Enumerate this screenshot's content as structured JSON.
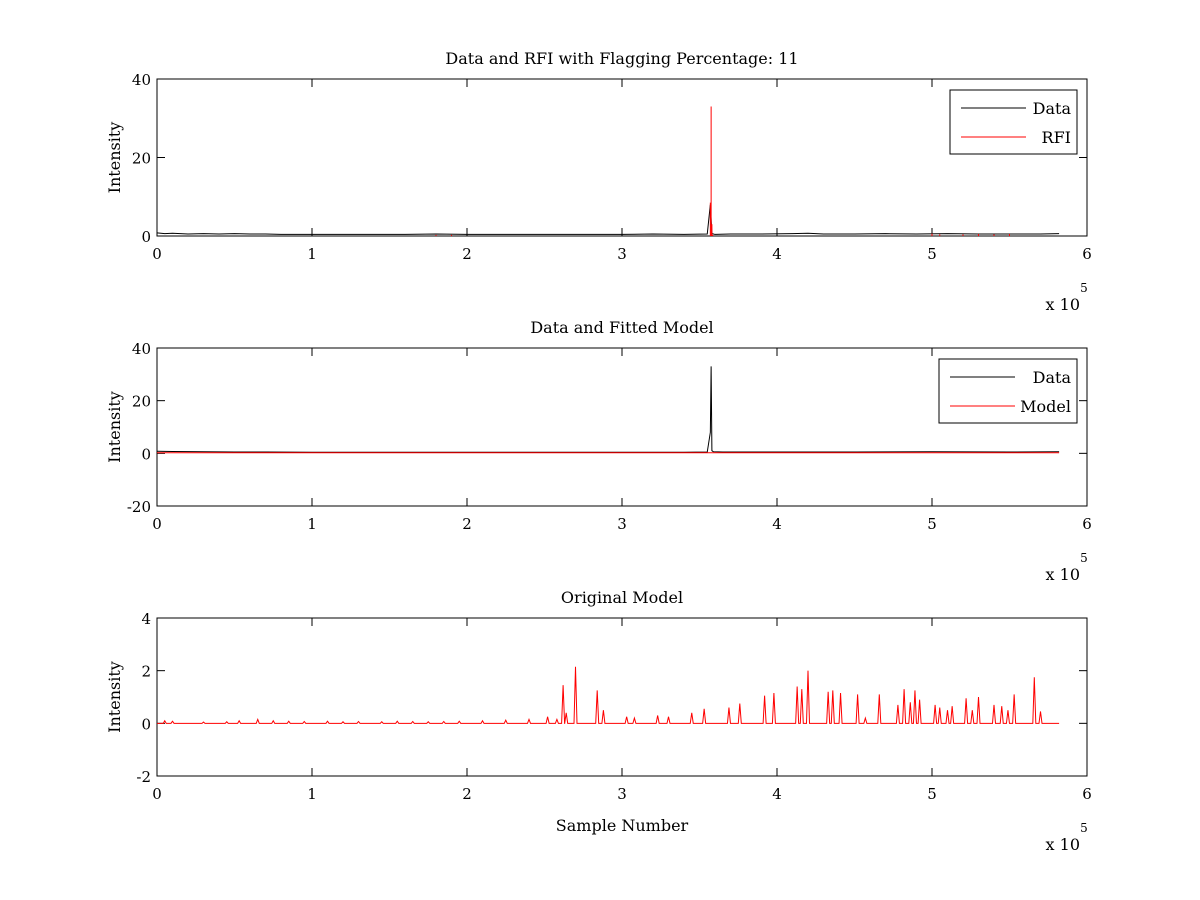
{
  "chart_data": [
    {
      "type": "line",
      "title": "Data and RFI with Flagging Percentage: 11",
      "xlabel": "",
      "ylabel": "Intensity",
      "xlim": [
        0,
        600000
      ],
      "ylim": [
        0,
        40
      ],
      "x_ticks": [
        0,
        1,
        2,
        3,
        4,
        5,
        6
      ],
      "x_tick_labels": [
        "0",
        "1",
        "2",
        "3",
        "4",
        "5",
        "6"
      ],
      "x_exponent_label": "x 10",
      "x_exponent_power": "5",
      "y_ticks": [
        0,
        20,
        40
      ],
      "y_tick_labels": [
        "0",
        "20",
        "40"
      ],
      "grid": false,
      "legend_position": "top-right",
      "series": [
        {
          "name": "Data",
          "color": "#000000",
          "x": [
            0,
            5000,
            10000,
            20000,
            30000,
            40000,
            50000,
            60000,
            70000,
            80000,
            100000,
            120000,
            140000,
            160000,
            180000,
            200000,
            220000,
            240000,
            260000,
            280000,
            300000,
            320000,
            340000,
            355000,
            357000,
            358000,
            359000,
            360000,
            370000,
            390000,
            410000,
            420000,
            430000,
            450000,
            470000,
            490000,
            510000,
            530000,
            550000,
            570000,
            582000
          ],
          "y": [
            0.8,
            0.6,
            0.7,
            0.5,
            0.6,
            0.5,
            0.6,
            0.5,
            0.5,
            0.4,
            0.4,
            0.4,
            0.4,
            0.4,
            0.5,
            0.4,
            0.4,
            0.4,
            0.4,
            0.4,
            0.4,
            0.5,
            0.4,
            0.5,
            8.0,
            0.6,
            0.5,
            0.4,
            0.5,
            0.5,
            0.6,
            0.7,
            0.5,
            0.5,
            0.6,
            0.5,
            0.6,
            0.5,
            0.5,
            0.5,
            0.6
          ]
        },
        {
          "name": "RFI",
          "color": "#ff0000",
          "x": [
            180000,
            190000,
            357000,
            357500,
            358000,
            358500,
            500000,
            505000,
            520000,
            530000,
            540000,
            550000
          ],
          "y": [
            0.3,
            0.3,
            8.5,
            33.0,
            3.0,
            0.3,
            0.6,
            0.4,
            0.4,
            0.5,
            0.4,
            0.5
          ]
        }
      ]
    },
    {
      "type": "line",
      "title": "Data and Fitted Model",
      "xlabel": "",
      "ylabel": "Intensity",
      "xlim": [
        0,
        600000
      ],
      "ylim": [
        -20,
        40
      ],
      "x_ticks": [
        0,
        1,
        2,
        3,
        4,
        5,
        6
      ],
      "x_tick_labels": [
        "0",
        "1",
        "2",
        "3",
        "4",
        "5",
        "6"
      ],
      "x_exponent_label": "x 10",
      "x_exponent_power": "5",
      "y_ticks": [
        -20,
        0,
        20,
        40
      ],
      "y_tick_labels": [
        "-20",
        "0",
        "20",
        "40"
      ],
      "grid": false,
      "legend_position": "top-right",
      "series": [
        {
          "name": "Data",
          "color": "#000000",
          "x": [
            0,
            10000,
            30000,
            50000,
            70000,
            100000,
            150000,
            200000,
            250000,
            300000,
            340000,
            355000,
            357000,
            357500,
            358000,
            359000,
            365000,
            400000,
            450000,
            500000,
            550000,
            582000
          ],
          "y": [
            0.8,
            0.7,
            0.6,
            0.5,
            0.5,
            0.4,
            0.4,
            0.4,
            0.4,
            0.4,
            0.4,
            0.5,
            8.0,
            33.0,
            1.0,
            0.6,
            0.5,
            0.5,
            0.5,
            0.6,
            0.5,
            0.6
          ]
        },
        {
          "name": "Model",
          "color": "#ff0000",
          "x": [
            0,
            100000,
            200000,
            300000,
            400000,
            500000,
            582000
          ],
          "y": [
            0.2,
            0.2,
            0.2,
            0.2,
            0.2,
            0.2,
            0.2
          ]
        }
      ]
    },
    {
      "type": "line",
      "title": "Original Model",
      "xlabel": "Sample Number",
      "ylabel": "Intensity",
      "xlim": [
        0,
        600000
      ],
      "ylim": [
        -2,
        4
      ],
      "x_ticks": [
        0,
        1,
        2,
        3,
        4,
        5,
        6
      ],
      "x_tick_labels": [
        "0",
        "1",
        "2",
        "3",
        "4",
        "5",
        "6"
      ],
      "x_exponent_label": "x 10",
      "x_exponent_power": "5",
      "y_ticks": [
        -2,
        0,
        2,
        4
      ],
      "y_tick_labels": [
        "-2",
        "0",
        "2",
        "4"
      ],
      "grid": false,
      "series": [
        {
          "color": "#ff0000",
          "peaks_x": [
            5000,
            10000,
            30000,
            45000,
            53000,
            65000,
            75000,
            85000,
            95000,
            110000,
            120000,
            130000,
            145000,
            155000,
            165000,
            175000,
            185000,
            195000,
            210000,
            225000,
            240000,
            252000,
            258000,
            262000,
            264000,
            270000,
            284000,
            288000,
            303000,
            308000,
            323000,
            330000,
            345000,
            353000,
            369000,
            376000,
            392000,
            398000,
            413000,
            416000,
            420000,
            433000,
            436000,
            441000,
            452000,
            457000,
            466000,
            478000,
            482000,
            486000,
            489000,
            492000,
            502000,
            505000,
            510000,
            513000,
            522000,
            526000,
            530000,
            540000,
            545000,
            549000,
            553000,
            566000,
            570000
          ],
          "peaks_y": [
            0.1,
            0.08,
            0.05,
            0.06,
            0.1,
            0.15,
            0.1,
            0.08,
            0.07,
            0.08,
            0.06,
            0.07,
            0.06,
            0.08,
            0.07,
            0.06,
            0.07,
            0.08,
            0.1,
            0.12,
            0.15,
            0.25,
            0.15,
            1.45,
            0.4,
            2.15,
            1.25,
            0.5,
            0.25,
            0.2,
            0.3,
            0.25,
            0.4,
            0.55,
            0.6,
            0.75,
            1.05,
            1.15,
            1.4,
            1.3,
            2.0,
            1.2,
            1.25,
            1.15,
            1.1,
            0.2,
            1.1,
            0.7,
            1.3,
            0.8,
            1.25,
            0.9,
            0.7,
            0.6,
            0.5,
            0.65,
            0.95,
            0.5,
            1.0,
            0.7,
            0.65,
            0.5,
            1.1,
            1.75,
            0.45
          ]
        }
      ]
    }
  ]
}
